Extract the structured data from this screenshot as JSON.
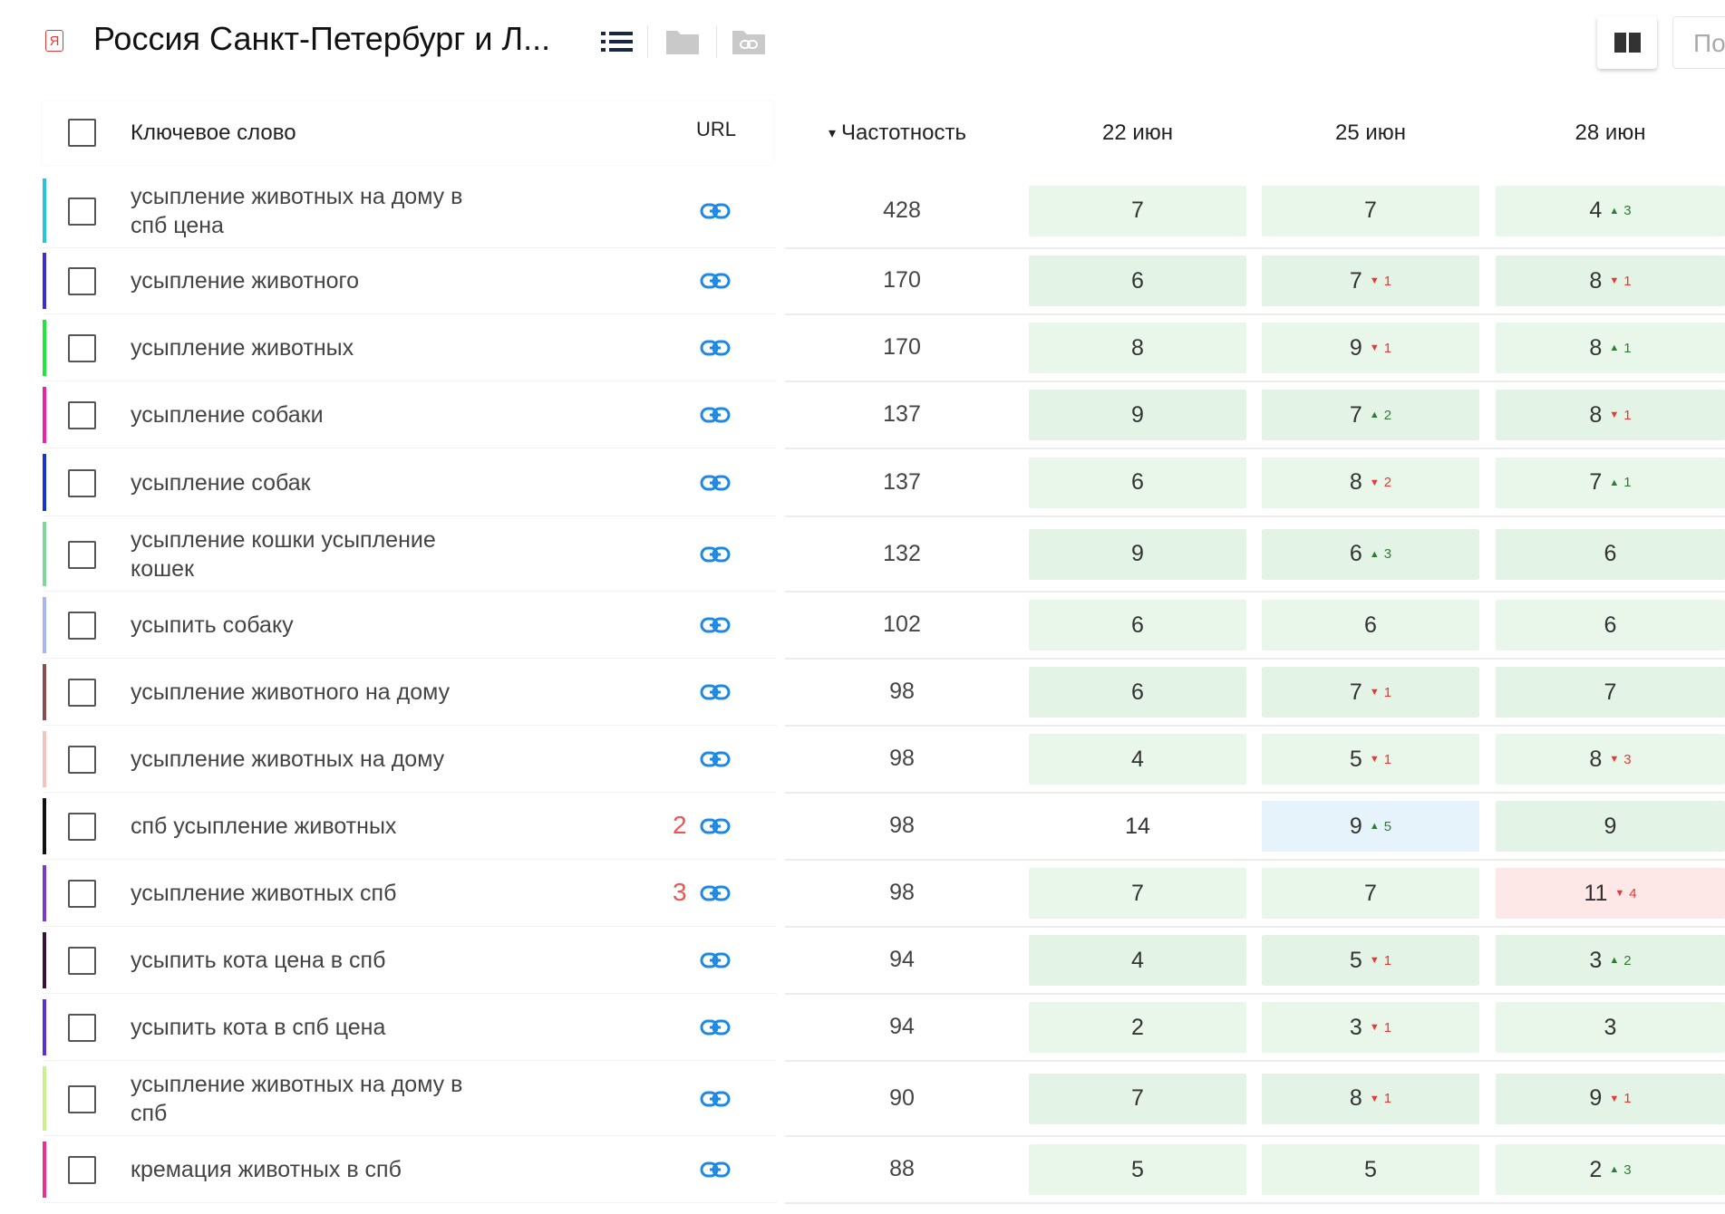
{
  "header": {
    "badge": "Я",
    "title": "Россия Санкт-Петербург и Л...",
    "cut_button": "По"
  },
  "table": {
    "columns": {
      "keyword": "Ключевое слово",
      "url": "URL",
      "frequency": "Частотность",
      "sort_indicator": "▾",
      "dates": [
        "22 июн",
        "25 июн",
        "28 июн"
      ]
    },
    "rows": [
      {
        "keyword": "усыпление животных на дому в спб цена",
        "color": "#26c6da",
        "url_dup": "",
        "freq": "428",
        "cells": [
          {
            "v": "7",
            "c": "",
            "d": "",
            "bg": "#e8f7ea"
          },
          {
            "v": "7",
            "c": "",
            "d": "",
            "bg": "#e8f7ea"
          },
          {
            "v": "4",
            "c": "3",
            "d": "up",
            "bg": "#e8f7ea"
          }
        ]
      },
      {
        "keyword": "усыпление животного",
        "color": "#3d2bd6",
        "url_dup": "",
        "freq": "170",
        "cells": [
          {
            "v": "6",
            "c": "",
            "d": "",
            "bg": "#e3f3e5"
          },
          {
            "v": "7",
            "c": "1",
            "d": "down",
            "bg": "#e3f3e5"
          },
          {
            "v": "8",
            "c": "1",
            "d": "down",
            "bg": "#e3f3e5"
          }
        ]
      },
      {
        "keyword": "усыпление животных",
        "color": "#1ee83a",
        "url_dup": "",
        "freq": "170",
        "cells": [
          {
            "v": "8",
            "c": "",
            "d": "",
            "bg": "#e8f7ea"
          },
          {
            "v": "9",
            "c": "1",
            "d": "down",
            "bg": "#e8f7ea"
          },
          {
            "v": "8",
            "c": "1",
            "d": "up",
            "bg": "#e8f7ea"
          }
        ]
      },
      {
        "keyword": "усыпление собаки",
        "color": "#f01fa7",
        "url_dup": "",
        "freq": "137",
        "cells": [
          {
            "v": "9",
            "c": "",
            "d": "",
            "bg": "#e3f3e5"
          },
          {
            "v": "7",
            "c": "2",
            "d": "up",
            "bg": "#e3f3e5"
          },
          {
            "v": "8",
            "c": "1",
            "d": "down",
            "bg": "#e3f3e5"
          }
        ]
      },
      {
        "keyword": "усыпление собак",
        "color": "#1533d6",
        "url_dup": "",
        "freq": "137",
        "cells": [
          {
            "v": "6",
            "c": "",
            "d": "",
            "bg": "#e8f7ea"
          },
          {
            "v": "8",
            "c": "2",
            "d": "down",
            "bg": "#e8f7ea"
          },
          {
            "v": "7",
            "c": "1",
            "d": "up",
            "bg": "#e8f7ea"
          }
        ]
      },
      {
        "keyword": "усыпление кошки усыпление кошек",
        "color": "#7ed89a",
        "url_dup": "",
        "freq": "132",
        "cells": [
          {
            "v": "9",
            "c": "",
            "d": "",
            "bg": "#e3f3e5"
          },
          {
            "v": "6",
            "c": "3",
            "d": "up",
            "bg": "#e3f3e5"
          },
          {
            "v": "6",
            "c": "",
            "d": "",
            "bg": "#e3f3e5"
          }
        ]
      },
      {
        "keyword": "усыпить собаку",
        "color": "#a9b4f5",
        "url_dup": "",
        "freq": "102",
        "cells": [
          {
            "v": "6",
            "c": "",
            "d": "",
            "bg": "#e8f7ea"
          },
          {
            "v": "6",
            "c": "",
            "d": "",
            "bg": "#e8f7ea"
          },
          {
            "v": "6",
            "c": "",
            "d": "",
            "bg": "#e8f7ea"
          }
        ]
      },
      {
        "keyword": "усыпление животного на дому",
        "color": "#8d4b4b",
        "url_dup": "",
        "freq": "98",
        "cells": [
          {
            "v": "6",
            "c": "",
            "d": "",
            "bg": "#e3f3e5"
          },
          {
            "v": "7",
            "c": "1",
            "d": "down",
            "bg": "#e3f3e5"
          },
          {
            "v": "7",
            "c": "",
            "d": "",
            "bg": "#e3f3e5"
          }
        ]
      },
      {
        "keyword": "усыпление животных на дому",
        "color": "#f3c3bd",
        "url_dup": "",
        "freq": "98",
        "cells": [
          {
            "v": "4",
            "c": "",
            "d": "",
            "bg": "#e8f7ea"
          },
          {
            "v": "5",
            "c": "1",
            "d": "down",
            "bg": "#e8f7ea"
          },
          {
            "v": "8",
            "c": "3",
            "d": "down",
            "bg": "#e8f7ea"
          }
        ]
      },
      {
        "keyword": "спб усыпление животных",
        "color": "#111111",
        "url_dup": "2",
        "freq": "98",
        "cells": [
          {
            "v": "14",
            "c": "",
            "d": "",
            "bg": "#ffffff"
          },
          {
            "v": "9",
            "c": "5",
            "d": "up",
            "bg": "#e6f3fb"
          },
          {
            "v": "9",
            "c": "",
            "d": "",
            "bg": "#e3f3e5"
          }
        ]
      },
      {
        "keyword": "усыпление животных спб",
        "color": "#7a3ad1",
        "url_dup": "3",
        "freq": "98",
        "cells": [
          {
            "v": "7",
            "c": "",
            "d": "",
            "bg": "#e8f7ea"
          },
          {
            "v": "7",
            "c": "",
            "d": "",
            "bg": "#e8f7ea"
          },
          {
            "v": "11",
            "c": "4",
            "d": "down",
            "bg": "#fde7e7"
          }
        ]
      },
      {
        "keyword": "усыпить кота цена в спб",
        "color": "#3a1038",
        "url_dup": "",
        "freq": "94",
        "cells": [
          {
            "v": "4",
            "c": "",
            "d": "",
            "bg": "#e3f3e5"
          },
          {
            "v": "5",
            "c": "1",
            "d": "down",
            "bg": "#e3f3e5"
          },
          {
            "v": "3",
            "c": "2",
            "d": "up",
            "bg": "#e3f3e5"
          }
        ]
      },
      {
        "keyword": "усыпить кота в спб цена",
        "color": "#5a2fd6",
        "url_dup": "",
        "freq": "94",
        "cells": [
          {
            "v": "2",
            "c": "",
            "d": "",
            "bg": "#e8f7ea"
          },
          {
            "v": "3",
            "c": "1",
            "d": "down",
            "bg": "#e8f7ea"
          },
          {
            "v": "3",
            "c": "",
            "d": "",
            "bg": "#e8f7ea"
          }
        ]
      },
      {
        "keyword": "усыпление животных на дому в спб",
        "color": "#c9f28a",
        "url_dup": "",
        "freq": "90",
        "cells": [
          {
            "v": "7",
            "c": "",
            "d": "",
            "bg": "#e3f3e5"
          },
          {
            "v": "8",
            "c": "1",
            "d": "down",
            "bg": "#e3f3e5"
          },
          {
            "v": "9",
            "c": "1",
            "d": "down",
            "bg": "#e3f3e5"
          }
        ]
      },
      {
        "keyword": "кремация животных в спб",
        "color": "#ec2f8f",
        "url_dup": "",
        "freq": "88",
        "cells": [
          {
            "v": "5",
            "c": "",
            "d": "",
            "bg": "#e8f7ea"
          },
          {
            "v": "5",
            "c": "",
            "d": "",
            "bg": "#e8f7ea"
          },
          {
            "v": "2",
            "c": "3",
            "d": "up",
            "bg": "#e8f7ea"
          }
        ]
      }
    ]
  }
}
